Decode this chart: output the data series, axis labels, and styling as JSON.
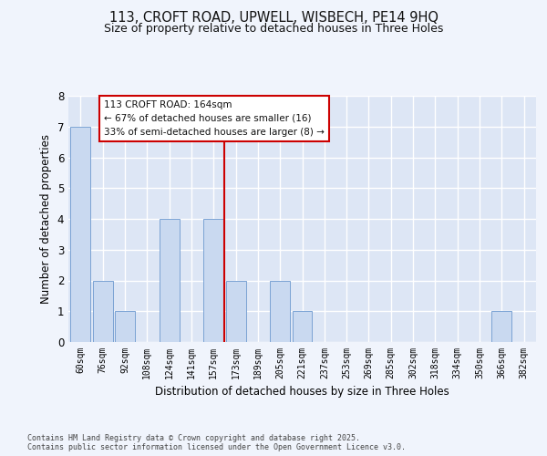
{
  "title1": "113, CROFT ROAD, UPWELL, WISBECH, PE14 9HQ",
  "title2": "Size of property relative to detached houses in Three Holes",
  "xlabel": "Distribution of detached houses by size in Three Holes",
  "ylabel": "Number of detached properties",
  "categories": [
    "60sqm",
    "76sqm",
    "92sqm",
    "108sqm",
    "124sqm",
    "141sqm",
    "157sqm",
    "173sqm",
    "189sqm",
    "205sqm",
    "221sqm",
    "237sqm",
    "253sqm",
    "269sqm",
    "285sqm",
    "302sqm",
    "318sqm",
    "334sqm",
    "350sqm",
    "366sqm",
    "382sqm"
  ],
  "values": [
    7,
    2,
    1,
    0,
    4,
    0,
    4,
    2,
    0,
    2,
    1,
    0,
    0,
    0,
    0,
    0,
    0,
    0,
    0,
    1,
    0
  ],
  "bar_color": "#c9d9f0",
  "bar_edge_color": "#7ba3d4",
  "background_color": "#dde6f5",
  "grid_color": "#ffffff",
  "fig_background": "#f0f4fc",
  "annotation_text": "113 CROFT ROAD: 164sqm\n← 67% of detached houses are smaller (16)\n33% of semi-detached houses are larger (8) →",
  "annotation_box_color": "#ffffff",
  "annotation_box_edge": "#cc0000",
  "vline_color": "#cc0000",
  "ylim": [
    0,
    8
  ],
  "yticks": [
    0,
    1,
    2,
    3,
    4,
    5,
    6,
    7,
    8
  ],
  "footer1": "Contains HM Land Registry data © Crown copyright and database right 2025.",
  "footer2": "Contains public sector information licensed under the Open Government Licence v3.0."
}
